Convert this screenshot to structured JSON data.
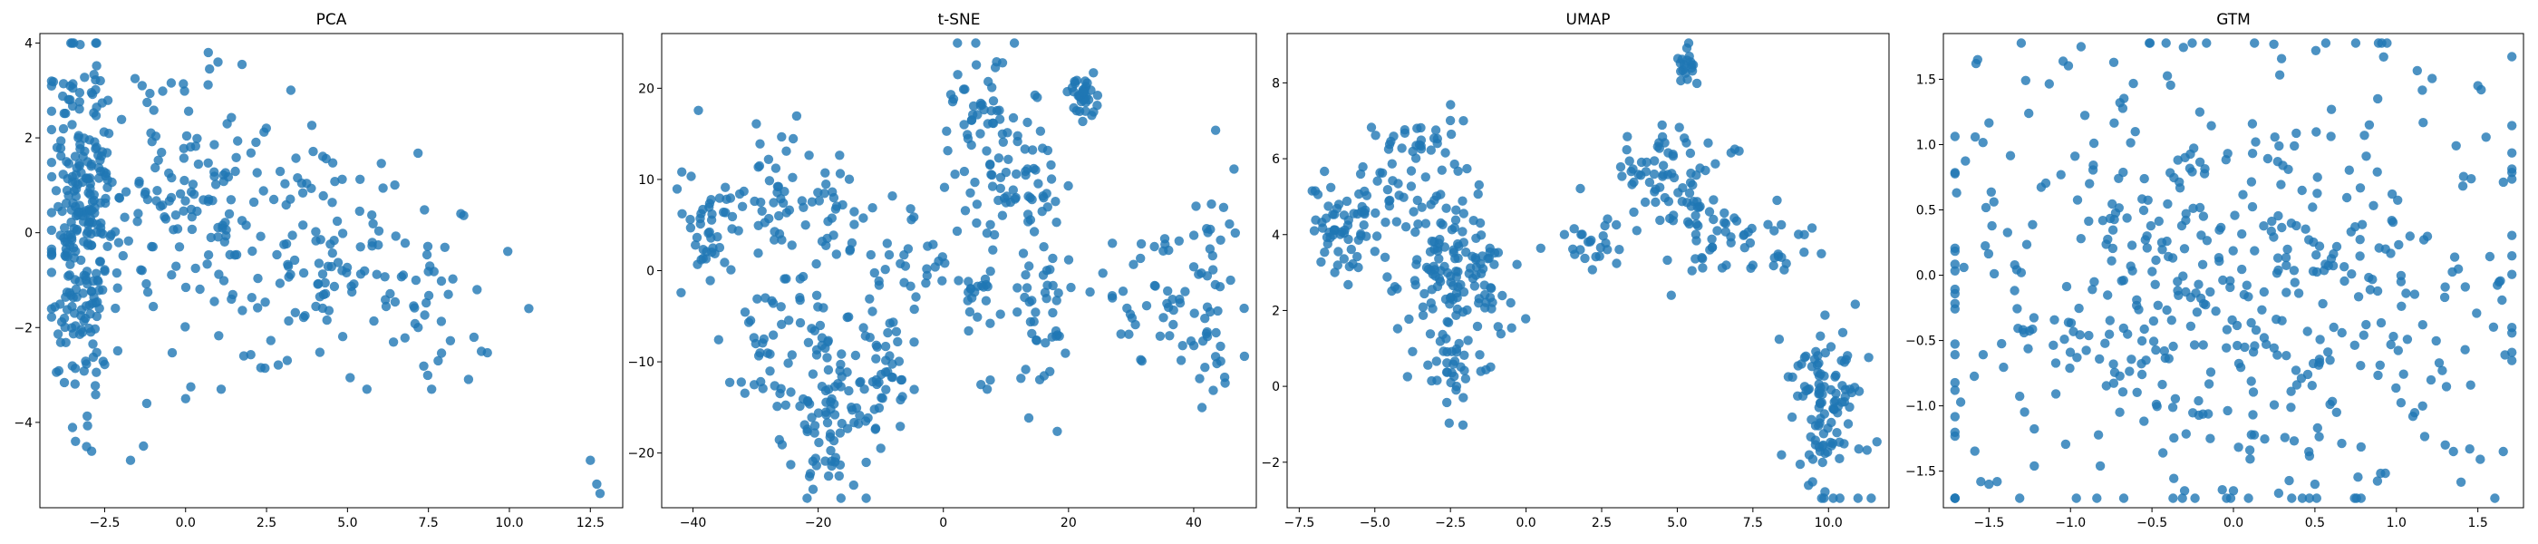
{
  "figure": {
    "accent_color": "#1f77b4"
  },
  "chart_data": [
    {
      "type": "scatter",
      "title": "PCA",
      "xlabel": "",
      "ylabel": "",
      "xlim": [
        -4.5,
        13.5
      ],
      "ylim": [
        -5.8,
        4.2
      ],
      "xticks": [
        -2.5,
        0.0,
        2.5,
        5.0,
        7.5,
        10.0,
        12.5
      ],
      "xtick_labels": [
        "−2.5",
        "0.0",
        "2.5",
        "5.0",
        "7.5",
        "10.0",
        "12.5"
      ],
      "yticks": [
        -4,
        -2,
        0,
        2,
        4
      ],
      "ytick_labels": [
        "−4",
        "−2",
        "0",
        "2",
        "4"
      ],
      "grid": false,
      "series": [
        {
          "color": "#1f77b4",
          "clusters": [
            {
              "cx": -3.2,
              "cy": 0.3,
              "sx": 0.55,
              "sy": 1.9,
              "n": 260
            },
            {
              "cx": 0.3,
              "cy": 0.6,
              "sx": 1.8,
              "sy": 1.3,
              "n": 170
            },
            {
              "cx": 4.8,
              "cy": -0.5,
              "sx": 1.6,
              "sy": 1.1,
              "n": 90
            },
            {
              "cx": 7.5,
              "cy": -1.8,
              "sx": 1.0,
              "sy": 0.8,
              "n": 25
            }
          ],
          "points": [
            [
              12.5,
              -4.8
            ],
            [
              12.7,
              -5.3
            ],
            [
              12.8,
              -5.5
            ],
            [
              10.6,
              -1.6
            ],
            [
              8.5,
              0.4
            ],
            [
              9.0,
              -1.2
            ],
            [
              0.7,
              3.8
            ],
            [
              1.0,
              3.6
            ],
            [
              -1.7,
              -4.8
            ],
            [
              -1.3,
              -4.5
            ],
            [
              -1.2,
              -3.6
            ],
            [
              0.0,
              -3.5
            ],
            [
              1.1,
              -3.3
            ],
            [
              1.8,
              -2.6
            ],
            [
              5.6,
              -3.3
            ],
            [
              7.6,
              -3.3
            ],
            [
              7.8,
              -2.7
            ],
            [
              -3.4,
              -4.4
            ]
          ]
        }
      ]
    },
    {
      "type": "scatter",
      "title": "t-SNE",
      "xlabel": "",
      "ylabel": "",
      "xlim": [
        -45,
        50
      ],
      "ylim": [
        -26,
        26
      ],
      "xticks": [
        -40,
        -20,
        0,
        20,
        40
      ],
      "xtick_labels": [
        "−40",
        "−20",
        "0",
        "20",
        "40"
      ],
      "yticks": [
        -20,
        -10,
        0,
        10,
        20
      ],
      "ytick_labels": [
        "−20",
        "−10",
        "0",
        "10",
        "20"
      ],
      "grid": false,
      "series": [
        {
          "color": "#1f77b4",
          "clusters": [
            {
              "cx": -38,
              "cy": 4,
              "sx": 3,
              "sy": 3,
              "n": 40
            },
            {
              "cx": -28,
              "cy": 7,
              "sx": 4,
              "sy": 4,
              "n": 50
            },
            {
              "cx": -26,
              "cy": -8,
              "sx": 4,
              "sy": 5,
              "n": 60
            },
            {
              "cx": -18,
              "cy": -16,
              "sx": 3,
              "sy": 5,
              "n": 70
            },
            {
              "cx": -10,
              "cy": -11,
              "sx": 3,
              "sy": 5,
              "n": 50
            },
            {
              "cx": -16,
              "cy": 7,
              "sx": 3,
              "sy": 3,
              "n": 25
            },
            {
              "cx": -4,
              "cy": 1,
              "sx": 4,
              "sy": 3,
              "n": 30
            },
            {
              "cx": 6,
              "cy": 17,
              "sx": 3,
              "sy": 4,
              "n": 50
            },
            {
              "cx": 12,
              "cy": 8,
              "sx": 4,
              "sy": 5,
              "n": 60
            },
            {
              "cx": 22,
              "cy": 19,
              "sx": 1.2,
              "sy": 1.2,
              "n": 35
            },
            {
              "cx": 16,
              "cy": -5,
              "sx": 3,
              "sy": 4,
              "n": 40
            },
            {
              "cx": 6,
              "cy": -2,
              "sx": 1.5,
              "sy": 2,
              "n": 20
            },
            {
              "cx": 33,
              "cy": -3,
              "sx": 4,
              "sy": 4,
              "n": 40
            },
            {
              "cx": 43,
              "cy": -3,
              "sx": 2.5,
              "sy": 6,
              "n": 45
            }
          ],
          "points": [
            [
              6,
              -12.5
            ],
            [
              7,
              -13
            ],
            [
              7.5,
              -12
            ],
            [
              27,
              3
            ],
            [
              15,
              19
            ]
          ]
        }
      ]
    },
    {
      "type": "scatter",
      "title": "UMAP",
      "xlabel": "",
      "ylabel": "",
      "xlim": [
        -7.9,
        12.0
      ],
      "ylim": [
        -3.2,
        9.3
      ],
      "xticks": [
        -7.5,
        -5.0,
        -2.5,
        0.0,
        2.5,
        5.0,
        7.5,
        10.0
      ],
      "xtick_labels": [
        "−7.5",
        "−5.0",
        "−2.5",
        "0.0",
        "2.5",
        "5.0",
        "7.5",
        "10.0"
      ],
      "yticks": [
        -2,
        0,
        2,
        4,
        6,
        8
      ],
      "ytick_labels": [
        "−2",
        "0",
        "2",
        "4",
        "6",
        "8"
      ],
      "grid": false,
      "series": [
        {
          "color": "#1f77b4",
          "clusters": [
            {
              "cx": -6.0,
              "cy": 4.3,
              "sx": 0.6,
              "sy": 0.7,
              "n": 60
            },
            {
              "cx": -4.0,
              "cy": 5.2,
              "sx": 1.0,
              "sy": 0.9,
              "n": 50
            },
            {
              "cx": -2.3,
              "cy": 2.8,
              "sx": 1.0,
              "sy": 1.0,
              "n": 130
            },
            {
              "cx": -2.4,
              "cy": 0.6,
              "sx": 0.5,
              "sy": 0.6,
              "n": 30
            },
            {
              "cx": -3.0,
              "cy": 6.4,
              "sx": 0.6,
              "sy": 0.4,
              "n": 15
            },
            {
              "cx": 2.2,
              "cy": 3.7,
              "sx": 0.7,
              "sy": 0.4,
              "n": 25
            },
            {
              "cx": 4.2,
              "cy": 6.0,
              "sx": 0.8,
              "sy": 0.5,
              "n": 35
            },
            {
              "cx": 5.3,
              "cy": 8.3,
              "sx": 0.2,
              "sy": 0.3,
              "n": 20
            },
            {
              "cx": 5.5,
              "cy": 4.8,
              "sx": 1.0,
              "sy": 1.0,
              "n": 60
            },
            {
              "cx": 7.5,
              "cy": 3.5,
              "sx": 1.0,
              "sy": 0.4,
              "n": 30
            },
            {
              "cx": 10.0,
              "cy": -0.8,
              "sx": 0.6,
              "sy": 1.2,
              "n": 110
            }
          ],
          "points": [
            [
              -2.3,
              0.0
            ],
            [
              -2.0,
              0.2
            ],
            [
              9.2,
              4.0
            ],
            [
              4.8,
              2.4
            ],
            [
              -7.0,
              4.1
            ]
          ]
        }
      ]
    },
    {
      "type": "scatter",
      "title": "GTM",
      "xlabel": "",
      "ylabel": "",
      "xlim": [
        -1.78,
        1.78
      ],
      "ylim": [
        -1.78,
        1.85
      ],
      "xticks": [
        -1.5,
        -1.0,
        -0.5,
        0.0,
        0.5,
        1.0,
        1.5
      ],
      "xtick_labels": [
        "−1.5",
        "−1.0",
        "−0.5",
        "0.0",
        "0.5",
        "1.0",
        "1.5"
      ],
      "yticks": [
        -1.5,
        -1.0,
        -0.5,
        0.0,
        0.5,
        1.0,
        1.5
      ],
      "ytick_labels": [
        "−1.5",
        "−1.0",
        "−0.5",
        "0.0",
        "0.5",
        "1.0",
        "1.5"
      ],
      "grid": false,
      "series": [
        {
          "color": "#1f77b4",
          "clusters": [
            {
              "cx": 0.0,
              "cy": 0.0,
              "sx": 0.95,
              "sy": 0.9,
              "n": 520
            }
          ],
          "points": [
            [
              -1.58,
              1.62
            ],
            [
              -1.57,
              1.65
            ],
            [
              1.5,
              1.45
            ],
            [
              1.52,
              1.42
            ],
            [
              -1.55,
              -1.58
            ],
            [
              -1.5,
              -1.6
            ],
            [
              -1.45,
              -1.58
            ],
            [
              1.3,
              -1.3
            ],
            [
              1.35,
              -1.35
            ],
            [
              1.45,
              -1.33
            ],
            [
              0.0,
              -1.65
            ],
            [
              0.5,
              -1.6
            ],
            [
              -0.3,
              -1.65
            ]
          ]
        }
      ]
    }
  ]
}
